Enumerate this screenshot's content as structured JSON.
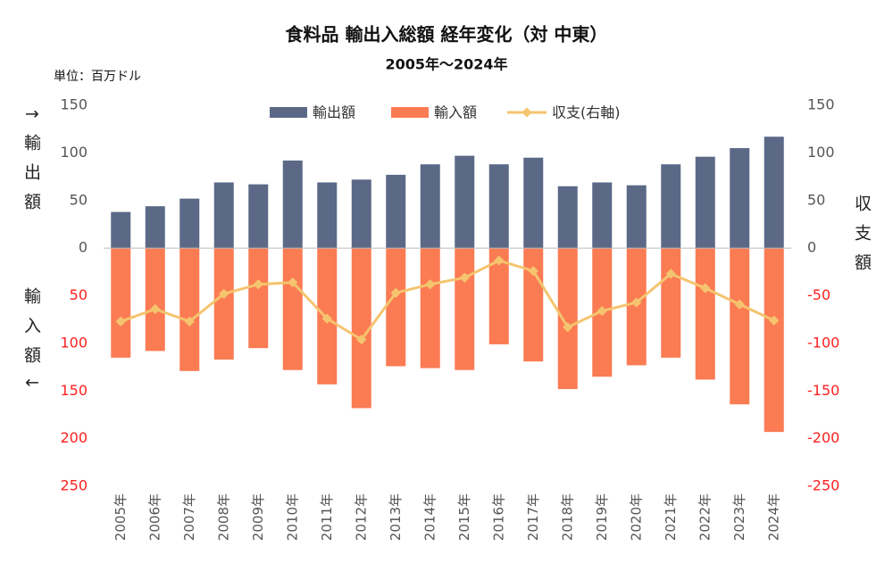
{
  "chart_data": {
    "type": "bar",
    "title": "食料品 輸出入総額 経年変化（対 中東）",
    "subtitle": "2005年～2024年",
    "unit_label": "単位：百万ドル",
    "y_axis_label_top": "↑輸出額",
    "y_axis_label_bottom": "輸入額↓",
    "y2_axis_label": "収支額",
    "categories": [
      "2005年",
      "2006年",
      "2007年",
      "2008年",
      "2009年",
      "2010年",
      "2011年",
      "2012年",
      "2013年",
      "2014年",
      "2015年",
      "2016年",
      "2017年",
      "2018年",
      "2019年",
      "2020年",
      "2021年",
      "2022年",
      "2023年",
      "2024年"
    ],
    "series": [
      {
        "name": "輸出額",
        "type": "bar",
        "color": "#5b6987",
        "values": [
          38,
          44,
          52,
          69,
          67,
          92,
          69,
          72,
          77,
          88,
          97,
          88,
          95,
          65,
          69,
          66,
          88,
          96,
          105,
          117
        ]
      },
      {
        "name": "輸入額",
        "type": "bar",
        "color": "#fb7b53",
        "values": [
          -115,
          -108,
          -129,
          -117,
          -105,
          -128,
          -143,
          -168,
          -124,
          -126,
          -128,
          -101,
          -119,
          -148,
          -135,
          -123,
          -115,
          -138,
          -164,
          -193
        ]
      },
      {
        "name": "収支(右軸)",
        "type": "line",
        "axis": "y2",
        "color": "#f5c46e",
        "values": [
          -77,
          -64,
          -77,
          -48,
          -38,
          -36,
          -74,
          -96,
          -47,
          -38,
          -31,
          -13,
          -24,
          -83,
          -66,
          -57,
          -27,
          -42,
          -59,
          -76
        ]
      }
    ],
    "ylim": [
      -250,
      150
    ],
    "yticks": [
      150,
      100,
      50,
      0,
      {
        "value": -50,
        "label": "50"
      },
      {
        "value": -100,
        "label": "100"
      },
      {
        "value": -150,
        "label": "150"
      },
      {
        "value": -200,
        "label": "200"
      },
      {
        "value": -250,
        "label": "250"
      }
    ],
    "y2lim": [
      -250,
      150
    ],
    "y2ticks": [
      150,
      100,
      50,
      0,
      -50,
      -100,
      -150,
      -200,
      -250
    ],
    "legend": "top"
  }
}
